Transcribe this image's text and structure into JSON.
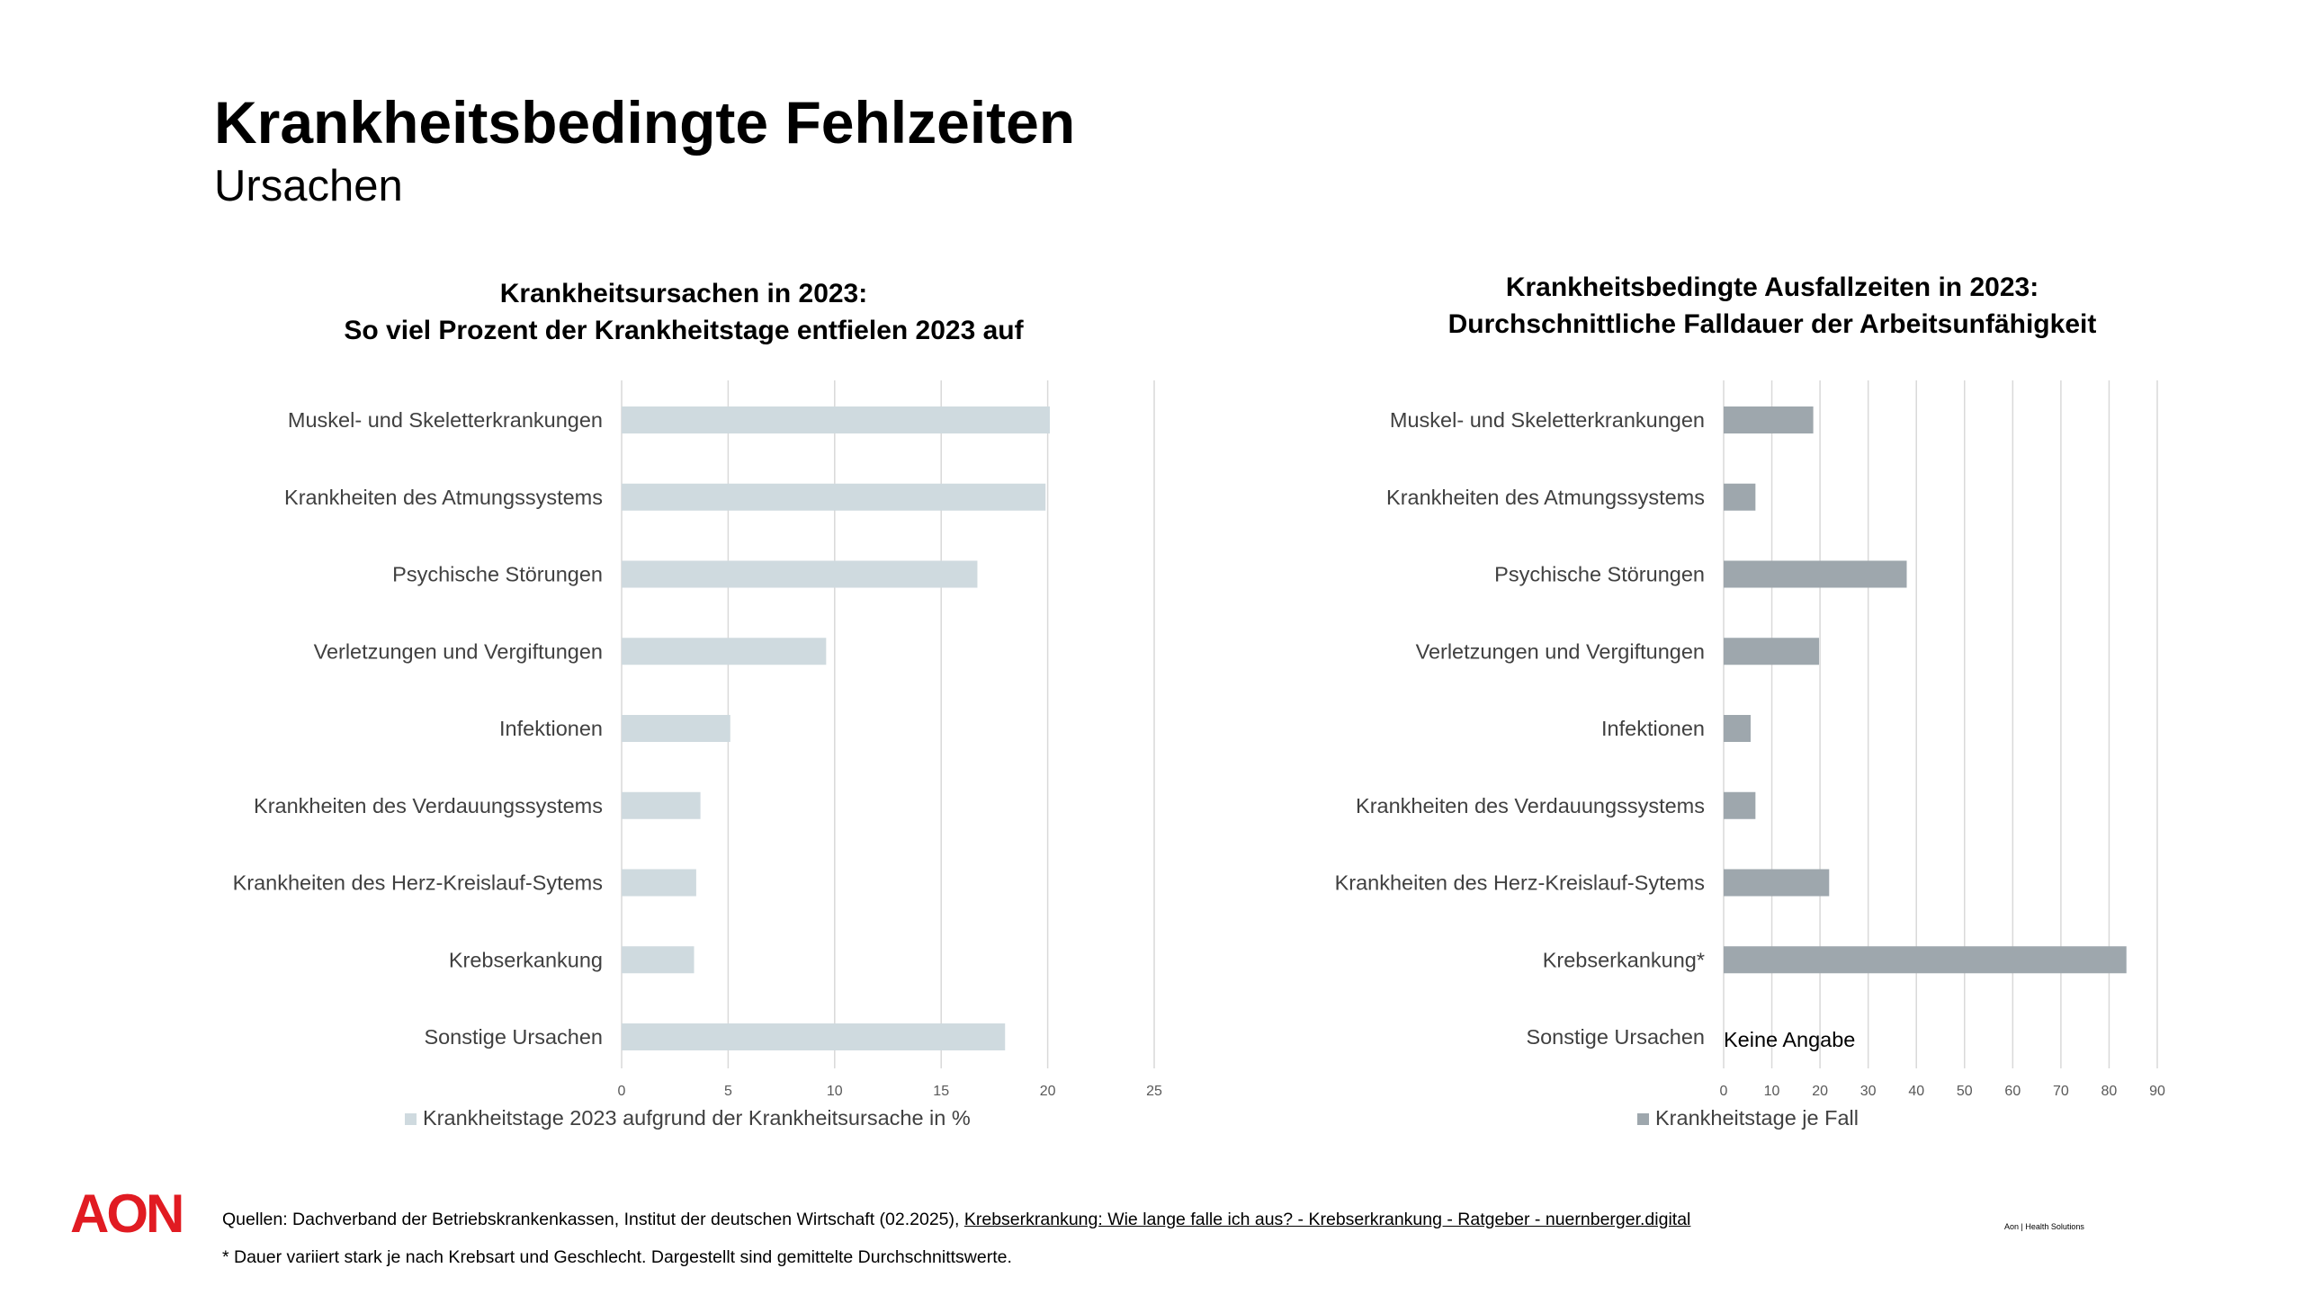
{
  "header": {
    "title": "Krankheitsbedingte Fehlzeiten",
    "subtitle": "Ursachen"
  },
  "chart_data": [
    {
      "type": "bar",
      "orientation": "horizontal",
      "title": "Krankheitsursachen in 2023:",
      "subtitle": "So viel Prozent der Krankheitstage entfielen 2023 auf",
      "categories": [
        "Muskel- und Skeletterkrankungen",
        "Krankheiten des Atmungssystems",
        "Psychische Störungen",
        "Verletzungen und Vergiftungen",
        "Infektionen",
        "Krankheiten des Verdauungssystems",
        "Krankheiten des Herz-Kreislauf-Sytems",
        "Krebserkankung",
        "Sonstige Ursachen"
      ],
      "series": [
        {
          "name": "Krankheitstage 2023 aufgrund der Krankheitsursache in %",
          "values": [
            20.1,
            19.9,
            16.7,
            9.6,
            5.1,
            3.7,
            3.5,
            3.4,
            18.0
          ],
          "color": "#cfdadf"
        }
      ],
      "xlim": [
        0,
        25
      ],
      "xticks": [
        "0",
        "5",
        "10",
        "15",
        "20",
        "25"
      ],
      "grid": true,
      "legend": "bottom"
    },
    {
      "type": "bar",
      "orientation": "horizontal",
      "title": "Krankheitsbedingte Ausfallzeiten in 2023:",
      "subtitle": "Durchschnittliche Falldauer der Arbeitsunfähigkeit",
      "categories": [
        "Muskel- und Skeletterkrankungen",
        "Krankheiten des Atmungssystems",
        "Psychische Störungen",
        "Verletzungen und Vergiftungen",
        "Infektionen",
        "Krankheiten des Verdauungssystems",
        "Krankheiten des Herz-Kreislauf-Sytems",
        "Krebserkankung*",
        "Sonstige Ursachen"
      ],
      "series": [
        {
          "name": "Krankheitstage je Fall",
          "values": [
            18.6,
            6.6,
            38.0,
            19.8,
            5.6,
            6.6,
            21.9,
            83.6,
            null
          ],
          "color": "#9ea7ad"
        }
      ],
      "annotations": [
        "Keine Angabe"
      ],
      "xlim": [
        0,
        90
      ],
      "xticks": [
        "0",
        "10",
        "20",
        "30",
        "40",
        "50",
        "60",
        "70",
        "80",
        "90"
      ],
      "grid": true,
      "legend": "bottom"
    }
  ],
  "footer": {
    "logo_text": "AON",
    "logo_color": "#e11b22",
    "sources_prefix": "Quellen: Dachverband der Betriebskrankenkassen, Institut der deutschen Wirtschaft (02.2025), ",
    "sources_link": "Krebserkrankung: Wie lange falle ich aus? - Krebserkrankung - Ratgeber - nuernberger.digital",
    "footnote": "* Dauer variiert stark je nach Krebsart und Geschlecht. Dargestellt sind gemittelte Durchschnittswerte.",
    "brand_small": "Aon | Health Solutions"
  }
}
